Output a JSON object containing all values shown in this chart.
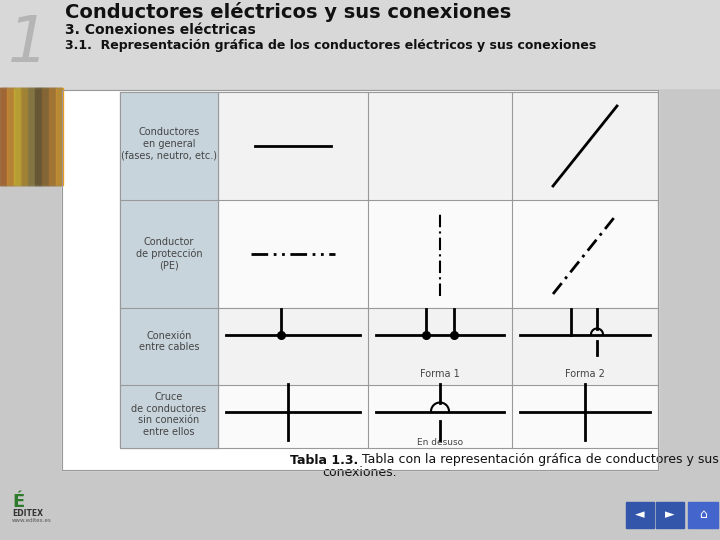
{
  "title": "Conductores eléctricos y sus conexiones",
  "subtitle": "3. Conexiones eléctricas",
  "subsubtitle": "3.1.  Representación gráfica de los conductores eléctricos y sus conexiones",
  "caption_bold": "Tabla 1.3.",
  "caption_normal": " Tabla con la representación gráfica de conductores y sus",
  "caption_line2": "conexiones.",
  "bg_color": "#c8c8c8",
  "header_bg": "#d8d8d8",
  "content_bg": "#ffffff",
  "label_bg": "#c8d4dc",
  "row_odd_bg": "#f0f0f0",
  "row_even_bg": "#fafafa",
  "grid_color": "#999999",
  "text_color": "#222222",
  "label_text_color": "#444444",
  "btn_color": "#3355aa",
  "btn_home_color": "#4466cc"
}
